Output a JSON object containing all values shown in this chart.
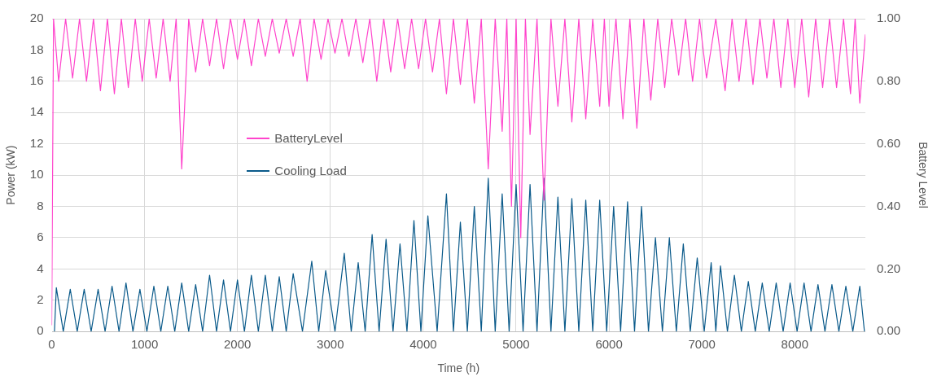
{
  "chart_data": {
    "type": "line",
    "xlabel": "Time (h)",
    "ylabel": "Power (kW)",
    "y2label": "Battery Level",
    "xlim": [
      0,
      8760
    ],
    "xticks": [
      0,
      1000,
      2000,
      3000,
      4000,
      5000,
      6000,
      7000,
      8000
    ],
    "ylim": [
      0,
      20
    ],
    "yticks": [
      0,
      2,
      4,
      6,
      8,
      10,
      12,
      14,
      16,
      18,
      20
    ],
    "y2lim": [
      0,
      1
    ],
    "y2ticks": [
      {
        "value": 0,
        "label": "0.00"
      },
      {
        "value": 0.2,
        "label": "0.20"
      },
      {
        "value": 0.4,
        "label": "0.40"
      },
      {
        "value": 0.6,
        "label": "0.60"
      },
      {
        "value": 0.8,
        "label": "0.80"
      },
      {
        "value": 1,
        "label": "1.00"
      }
    ],
    "grid": true,
    "legend": "top left",
    "marker": "none",
    "line_style": "solid",
    "series": [
      {
        "name": "BatteryLevel",
        "color": "#ff44cc",
        "axis": "y2",
        "x": [
          0,
          20,
          75,
          150,
          225,
          300,
          375,
          450,
          525,
          600,
          675,
          750,
          825,
          900,
          975,
          1050,
          1125,
          1200,
          1275,
          1340,
          1400,
          1475,
          1550,
          1625,
          1700,
          1775,
          1850,
          1925,
          2000,
          2075,
          2150,
          2225,
          2300,
          2375,
          2450,
          2525,
          2600,
          2675,
          2750,
          2825,
          2900,
          2975,
          3050,
          3125,
          3200,
          3275,
          3350,
          3425,
          3500,
          3575,
          3650,
          3725,
          3800,
          3875,
          3950,
          4025,
          4100,
          4175,
          4250,
          4325,
          4400,
          4475,
          4550,
          4625,
          4700,
          4775,
          4850,
          4900,
          4950,
          5000,
          5050,
          5100,
          5150,
          5225,
          5300,
          5375,
          5450,
          5525,
          5600,
          5675,
          5750,
          5825,
          5900,
          5950,
          6000,
          6075,
          6150,
          6225,
          6300,
          6375,
          6450,
          6525,
          6600,
          6675,
          6750,
          6825,
          6900,
          6975,
          7050,
          7150,
          7250,
          7325,
          7400,
          7475,
          7550,
          7625,
          7700,
          7775,
          7850,
          7925,
          8000,
          8075,
          8150,
          8225,
          8300,
          8375,
          8450,
          8525,
          8600,
          8650,
          8700,
          8760
        ],
        "values": [
          0.02,
          1,
          0.8,
          1,
          0.81,
          1,
          0.8,
          1,
          0.77,
          1,
          0.76,
          1,
          0.78,
          1,
          0.8,
          1,
          0.81,
          1,
          0.8,
          1,
          0.52,
          1,
          0.83,
          1,
          0.85,
          1,
          0.84,
          1,
          0.87,
          1,
          0.85,
          1,
          0.88,
          1,
          0.89,
          1,
          0.88,
          1,
          0.8,
          1,
          0.87,
          1,
          0.89,
          1,
          0.88,
          1,
          0.86,
          1,
          0.8,
          1,
          0.83,
          1,
          0.84,
          1,
          0.84,
          1,
          0.83,
          1,
          0.76,
          1,
          0.79,
          1,
          0.73,
          1,
          0.52,
          1,
          0.64,
          1,
          0.4,
          1,
          0.3,
          1,
          0.63,
          1,
          0.42,
          1,
          0.72,
          1,
          0.67,
          1,
          0.68,
          1,
          0.72,
          1,
          0.72,
          1,
          0.68,
          1,
          0.65,
          1,
          0.74,
          1,
          0.78,
          1,
          0.82,
          1,
          0.8,
          1,
          0.81,
          1,
          0.77,
          1,
          0.8,
          1,
          0.79,
          1,
          0.81,
          1,
          0.78,
          1,
          0.78,
          1,
          0.75,
          1,
          0.78,
          1,
          0.78,
          1,
          0.76,
          1,
          0.73,
          0.95
        ]
      },
      {
        "name": "Cooling Load",
        "color": "#0a5a8a",
        "x": [
          30,
          50,
          125,
          200,
          275,
          350,
          425,
          500,
          575,
          650,
          725,
          800,
          875,
          950,
          1025,
          1100,
          1175,
          1250,
          1325,
          1400,
          1475,
          1550,
          1625,
          1700,
          1775,
          1850,
          1925,
          2000,
          2075,
          2150,
          2225,
          2300,
          2375,
          2450,
          2525,
          2600,
          2700,
          2800,
          2875,
          2950,
          3050,
          3150,
          3225,
          3300,
          3375,
          3450,
          3525,
          3600,
          3675,
          3750,
          3825,
          3900,
          3975,
          4050,
          4150,
          4250,
          4325,
          4400,
          4475,
          4550,
          4625,
          4700,
          4775,
          4850,
          4925,
          5000,
          5075,
          5150,
          5225,
          5300,
          5375,
          5450,
          5525,
          5600,
          5675,
          5750,
          5825,
          5900,
          5975,
          6050,
          6125,
          6200,
          6275,
          6350,
          6425,
          6500,
          6575,
          6650,
          6725,
          6800,
          6875,
          6950,
          7025,
          7100,
          7150,
          7200,
          7275,
          7350,
          7425,
          7500,
          7575,
          7650,
          7725,
          7800,
          7875,
          7950,
          8025,
          8100,
          8175,
          8250,
          8325,
          8400,
          8475,
          8550,
          8625,
          8700,
          8750
        ],
        "values": [
          0,
          2.8,
          0,
          2.7,
          0,
          2.7,
          0,
          2.7,
          0,
          2.9,
          0,
          3.1,
          0,
          2.7,
          0,
          2.9,
          0,
          2.9,
          0,
          3.1,
          0,
          3.0,
          0,
          3.6,
          0,
          3.3,
          0,
          3.3,
          0,
          3.6,
          0,
          3.6,
          0,
          3.5,
          0,
          3.7,
          0,
          4.5,
          0,
          3.9,
          0,
          5.0,
          0,
          4.4,
          0,
          6.2,
          0,
          5.9,
          0,
          5.6,
          0,
          7.1,
          0,
          7.4,
          0,
          8.8,
          0,
          7.0,
          0,
          8.0,
          0,
          9.8,
          0,
          8.8,
          0,
          9.4,
          0,
          9.4,
          0,
          9.8,
          0,
          8.6,
          0,
          8.5,
          0,
          8.4,
          0,
          8.4,
          0,
          8.0,
          0,
          8.3,
          0,
          8.0,
          0,
          6.0,
          0,
          6.0,
          0,
          5.6,
          0,
          4.7,
          0,
          4.4,
          0,
          4.2,
          0,
          3.6,
          0,
          3.2,
          0,
          3.1,
          0,
          3.1,
          0,
          3.1,
          0,
          3.1,
          0,
          3.0,
          0,
          3.0,
          0,
          2.9,
          0,
          2.9,
          0
        ]
      }
    ]
  }
}
